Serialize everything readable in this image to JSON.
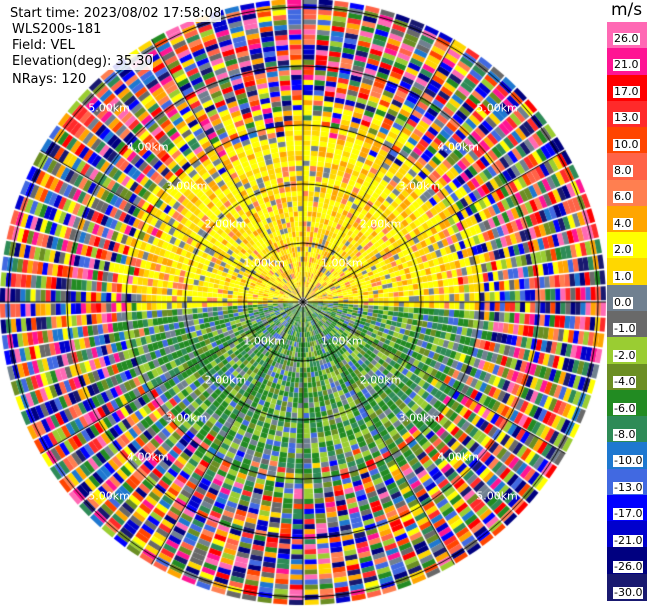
{
  "header": {
    "start_time": "Start time: 2023/08/02 17:58:08",
    "instrument": "WLS200s-181",
    "field": "Field: VEL",
    "elevation": "Elevation(deg): 35.30",
    "nrays": "NRays: 120"
  },
  "chart_data": {
    "type": "heatmap",
    "projection": "polar PPI",
    "field": "VEL",
    "nrays": 120,
    "range_rings": [
      "1.00km",
      "2.00km",
      "3.00km",
      "4.00km",
      "5.00km"
    ],
    "grid": true,
    "colorbar": {
      "unit": "m/s",
      "position": "right",
      "labels": [
        "26.0",
        "21.0",
        "17.0",
        "13.0",
        "10.0",
        "8.0",
        "6.0",
        "4.0",
        "2.0",
        "1.0",
        "0.0",
        "-1.0",
        "-2.0",
        "-4.0",
        "-6.0",
        "-8.0",
        "-10.0",
        "-13.0",
        "-17.0",
        "-21.0",
        "-26.0",
        "-30.0"
      ],
      "colors": [
        "#ff69b4",
        "#ff1493",
        "#ff0000",
        "#ff2a2a",
        "#ff4500",
        "#ff6347",
        "#ff7f50",
        "#ffa500",
        "#ffff00",
        "#ffd700",
        "#708090",
        "#696969",
        "#9acd32",
        "#6b8e23",
        "#228b22",
        "#2e8b57",
        "#1e78d0",
        "#4169e1",
        "#0000ff",
        "#0000cd",
        "#000080",
        "#191970"
      ]
    }
  }
}
